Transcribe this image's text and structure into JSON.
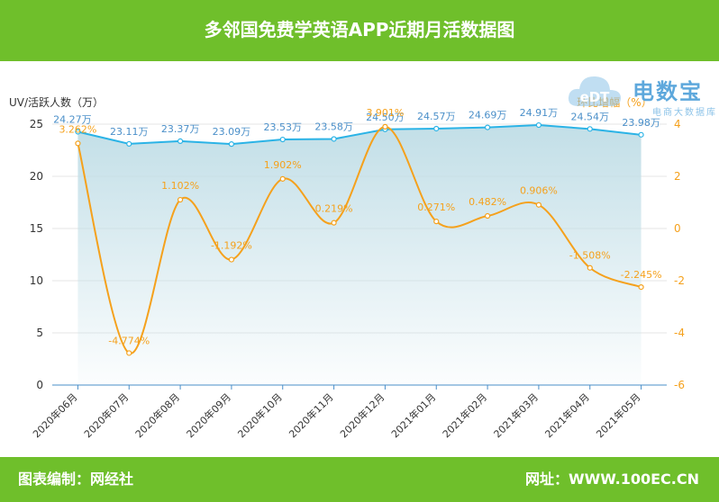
{
  "header": {
    "title": "多邻国免费学英语APP近期月活数据图"
  },
  "footer": {
    "credit": "图表编制：网经社",
    "website": "网址：WWW.100EC.CN"
  },
  "logo": {
    "name": "电数宝",
    "subtitle": "电商大数据库",
    "mark": "eDT"
  },
  "colors": {
    "header_bar": "#6fbf2b",
    "uv_line": "#2bb3e6",
    "growth_line": "#f5a11c",
    "uv_label": "#4a8fc9"
  },
  "chart_data": {
    "type": "line",
    "title": "多邻国免费学英语APP近期月活数据图",
    "categories": [
      "2020年06月",
      "2020年07月",
      "2020年08月",
      "2020年09月",
      "2020年10月",
      "2020年11月",
      "2020年12月",
      "2021年01月",
      "2021年02月",
      "2021年03月",
      "2021年04月",
      "2021年05月"
    ],
    "ylabel": "UV/活跃人数（万）",
    "y2label": "环比增幅（%）",
    "ylim": [
      0,
      25
    ],
    "y2lim": [
      -6,
      4
    ],
    "yticks": [
      "0",
      "5",
      "10",
      "15",
      "20",
      "25"
    ],
    "y2ticks": [
      "-6",
      "-4",
      "-2",
      "0",
      "2",
      "4"
    ],
    "grid": true,
    "series": [
      {
        "axis": "left",
        "area": true,
        "values": [
          24.27,
          23.11,
          23.37,
          23.09,
          23.53,
          23.58,
          24.5,
          24.57,
          24.69,
          24.91,
          24.54,
          23.98
        ],
        "labels": [
          "24.27万",
          "23.11万",
          "23.37万",
          "23.09万",
          "23.53万",
          "23.58万",
          "24.50万",
          "24.57万",
          "24.69万",
          "24.91万",
          "24.54万",
          "23.98万"
        ]
      },
      {
        "axis": "right",
        "smooth": true,
        "values": [
          3.262,
          -4.774,
          1.102,
          -1.192,
          1.902,
          0.219,
          3.901,
          0.271,
          0.482,
          0.906,
          -1.508,
          -2.245
        ],
        "labels": [
          "3.262%",
          "-4.774%",
          "1.102%",
          "-1.192%",
          "1.902%",
          "0.219%",
          "3.901%",
          "0.271%",
          "0.482%",
          "0.906%",
          "-1.508%",
          "-2.245%"
        ]
      }
    ]
  }
}
